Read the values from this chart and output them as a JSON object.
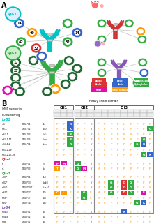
{
  "bg_color": "#FFFFFF",
  "igg1_color": "#00C4C4",
  "igg2_color": "#CC3333",
  "igg3_color": "#33AA44",
  "igg4_color": "#8855BB",
  "legend": [
    [
      "Acidic",
      "#DD3333"
    ],
    [
      "Basic",
      "#3366CC"
    ],
    [
      "Hydrophobic",
      "#33AA44"
    ],
    [
      "Polar",
      "#DD11AA"
    ],
    [
      "Small nonpolar",
      "#FF9900"
    ]
  ],
  "node_colors": {
    "blue": "#3366CC",
    "orange": "#FF9900",
    "green": "#33AA44",
    "red": "#DD3333",
    "pink": "#EE66BB",
    "magenta": "#DD11AA",
    "cyan": "#00BBCC",
    "purple": "#8855BB",
    "dark_green": "#226633",
    "light_blue": "#66AADD"
  },
  "aa_colors": {
    "P": "#FF9900",
    "A": "#FF9900",
    "G": "#FF9900",
    "V": "#FF9900",
    "L": "#FF9900",
    "I": "#FF9900",
    "M": "#FF9900",
    "F": "#33AA44",
    "W": "#33AA44",
    "Y": "#DD11AA",
    "S": "#DD11AA",
    "T": "#DD11AA",
    "C": "#DD11AA",
    "N": "#DD11AA",
    "Q": "#DD11AA",
    "D": "#DD3333",
    "E": "#DD3333",
    "K": "#3366CC",
    "R": "#3366CC",
    "H": "#3366CC"
  }
}
